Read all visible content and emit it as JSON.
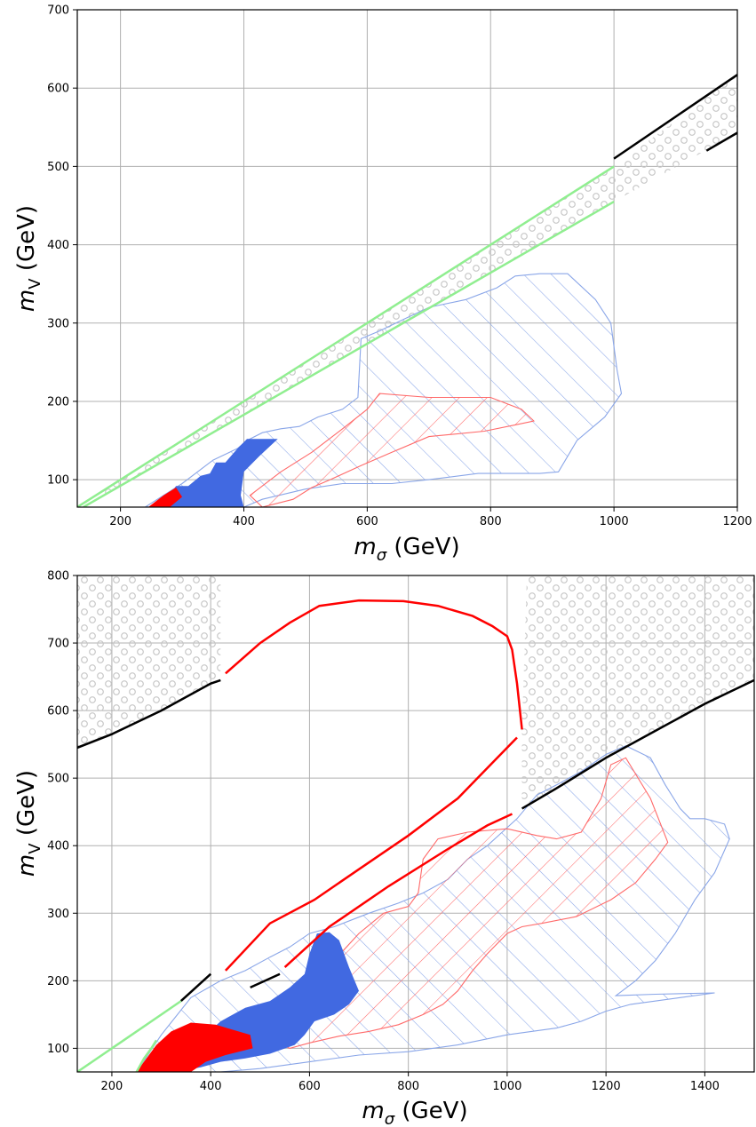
{
  "colors": {
    "solid_blue": "#4169e1",
    "blue_hatch": "#8aa6e8",
    "red": "#ff0000",
    "red_hatch": "#ff6a6a",
    "green": "#90ee90",
    "black": "#000000",
    "dots": "#c8c8c8",
    "grid": "#b0b0b0"
  },
  "chart_data": [
    {
      "type": "area",
      "xlabel_main": "m",
      "xlabel_sub": "σ",
      "xlabel_unit": " (GeV)",
      "ylabel_main": "m",
      "ylabel_sub": "V",
      "ylabel_unit": " (GeV)",
      "xlim": [
        130,
        1200
      ],
      "ylim": [
        65,
        700
      ],
      "xticks": [
        200,
        400,
        600,
        800,
        1000,
        1200
      ],
      "yticks": [
        100,
        200,
        300,
        400,
        500,
        600,
        700
      ],
      "grid": true,
      "green_upper": [
        [
          130,
          65
        ],
        [
          1000,
          500
        ]
      ],
      "green_lower": [
        [
          140,
          65
        ],
        [
          1000,
          455
        ]
      ],
      "black_upper": [
        [
          1000,
          510
        ],
        [
          1200,
          617
        ]
      ],
      "black_lower": [
        [
          1150,
          520
        ],
        [
          1200,
          543
        ]
      ],
      "dots_band": [
        [
          130,
          65
        ],
        [
          1000,
          500
        ],
        [
          1200,
          617
        ],
        [
          1200,
          543
        ],
        [
          1000,
          455
        ],
        [
          140,
          65
        ]
      ],
      "blue_hatch_region": [
        [
          240,
          65
        ],
        [
          300,
          95
        ],
        [
          350,
          125
        ],
        [
          390,
          140
        ],
        [
          405,
          150
        ],
        [
          430,
          160
        ],
        [
          460,
          165
        ],
        [
          490,
          168
        ],
        [
          520,
          180
        ],
        [
          560,
          190
        ],
        [
          585,
          205
        ],
        [
          590,
          280
        ],
        [
          620,
          290
        ],
        [
          660,
          305
        ],
        [
          700,
          320
        ],
        [
          760,
          330
        ],
        [
          810,
          345
        ],
        [
          840,
          360
        ],
        [
          880,
          363
        ],
        [
          925,
          363
        ],
        [
          970,
          330
        ],
        [
          995,
          300
        ],
        [
          1005,
          240
        ],
        [
          1012,
          210
        ],
        [
          985,
          180
        ],
        [
          940,
          150
        ],
        [
          910,
          110
        ],
        [
          880,
          108
        ],
        [
          780,
          108
        ],
        [
          700,
          100
        ],
        [
          640,
          95
        ],
        [
          560,
          95
        ],
        [
          500,
          88
        ],
        [
          430,
          75
        ],
        [
          400,
          65
        ]
      ],
      "red_hatch_region": [
        [
          410,
          80
        ],
        [
          460,
          110
        ],
        [
          510,
          135
        ],
        [
          560,
          165
        ],
        [
          600,
          190
        ],
        [
          620,
          210
        ],
        [
          700,
          205
        ],
        [
          800,
          205
        ],
        [
          850,
          190
        ],
        [
          870,
          175
        ],
        [
          840,
          170
        ],
        [
          790,
          162
        ],
        [
          700,
          155
        ],
        [
          640,
          135
        ],
        [
          590,
          118
        ],
        [
          540,
          100
        ],
        [
          510,
          90
        ],
        [
          480,
          75
        ],
        [
          430,
          65
        ]
      ],
      "solid_blue_region": [
        [
          245,
          65
        ],
        [
          280,
          80
        ],
        [
          290,
          92
        ],
        [
          310,
          92
        ],
        [
          330,
          105
        ],
        [
          345,
          108
        ],
        [
          355,
          122
        ],
        [
          370,
          122
        ],
        [
          390,
          140
        ],
        [
          405,
          152
        ],
        [
          455,
          152
        ],
        [
          425,
          130
        ],
        [
          400,
          110
        ],
        [
          395,
          80
        ],
        [
          400,
          65
        ]
      ],
      "red_solid_region": [
        [
          245,
          65
        ],
        [
          270,
          80
        ],
        [
          290,
          90
        ],
        [
          300,
          78
        ],
        [
          280,
          65
        ]
      ]
    },
    {
      "type": "area",
      "xlabel_main": "m",
      "xlabel_sub": "σ",
      "xlabel_unit": " (GeV)",
      "ylabel_main": "m",
      "ylabel_sub": "V",
      "ylabel_unit": " (GeV)",
      "xlim": [
        130,
        1500
      ],
      "ylim": [
        65,
        800
      ],
      "xticks": [
        200,
        400,
        600,
        800,
        1000,
        1200,
        1400
      ],
      "yticks": [
        100,
        200,
        300,
        400,
        500,
        600,
        700,
        800
      ],
      "grid": true,
      "black_main": [
        [
          130,
          545
        ],
        [
          200,
          565
        ],
        [
          300,
          600
        ],
        [
          400,
          640
        ],
        [
          420,
          645
        ]
      ],
      "black_right": [
        [
          1030,
          455
        ],
        [
          1100,
          485
        ],
        [
          1200,
          530
        ],
        [
          1300,
          570
        ],
        [
          1400,
          610
        ],
        [
          1500,
          645
        ]
      ],
      "black_lower_left": [
        [
          340,
          170
        ],
        [
          400,
          210
        ]
      ],
      "black_mid": [
        [
          480,
          190
        ],
        [
          540,
          210
        ]
      ],
      "red_upper": [
        [
          430,
          655
        ],
        [
          500,
          700
        ],
        [
          560,
          730
        ],
        [
          620,
          755
        ],
        [
          700,
          763
        ],
        [
          790,
          762
        ],
        [
          860,
          755
        ],
        [
          930,
          740
        ],
        [
          970,
          725
        ],
        [
          1000,
          710
        ],
        [
          1010,
          690
        ],
        [
          1020,
          640
        ],
        [
          1030,
          572
        ]
      ],
      "red_lower": [
        [
          430,
          215
        ],
        [
          520,
          285
        ],
        [
          610,
          320
        ],
        [
          700,
          365
        ],
        [
          800,
          415
        ],
        [
          900,
          470
        ],
        [
          960,
          515
        ],
        [
          1000,
          545
        ],
        [
          1020,
          560
        ]
      ],
      "red_lower2": [
        [
          550,
          220
        ],
        [
          640,
          280
        ],
        [
          760,
          340
        ],
        [
          880,
          395
        ],
        [
          960,
          430
        ],
        [
          1010,
          447
        ]
      ],
      "green_line": [
        [
          130,
          65
        ],
        [
          220,
          110
        ],
        [
          300,
          150
        ],
        [
          340,
          170
        ]
      ],
      "green_left": [
        [
          250,
          65
        ],
        [
          265,
          85
        ],
        [
          280,
          100
        ],
        [
          290,
          112
        ]
      ],
      "blue_hatch_region": [
        [
          250,
          65
        ],
        [
          300,
          120
        ],
        [
          360,
          175
        ],
        [
          420,
          200
        ],
        [
          470,
          215
        ],
        [
          520,
          235
        ],
        [
          560,
          250
        ],
        [
          600,
          270
        ],
        [
          650,
          280
        ],
        [
          720,
          300
        ],
        [
          780,
          315
        ],
        [
          830,
          330
        ],
        [
          880,
          350
        ],
        [
          920,
          380
        ],
        [
          960,
          400
        ],
        [
          990,
          420
        ],
        [
          1020,
          440
        ],
        [
          1060,
          475
        ],
        [
          1100,
          490
        ],
        [
          1150,
          510
        ],
        [
          1200,
          535
        ],
        [
          1240,
          548
        ],
        [
          1290,
          530
        ],
        [
          1320,
          490
        ],
        [
          1350,
          455
        ],
        [
          1370,
          440
        ],
        [
          1400,
          440
        ],
        [
          1440,
          432
        ],
        [
          1450,
          410
        ],
        [
          1420,
          360
        ],
        [
          1380,
          320
        ],
        [
          1340,
          270
        ],
        [
          1300,
          230
        ],
        [
          1260,
          200
        ],
        [
          1220,
          178
        ],
        [
          1300,
          180
        ],
        [
          1420,
          182
        ],
        [
          1350,
          175
        ],
        [
          1250,
          165
        ],
        [
          1200,
          155
        ],
        [
          1150,
          140
        ],
        [
          1100,
          130
        ],
        [
          1000,
          120
        ],
        [
          900,
          105
        ],
        [
          800,
          95
        ],
        [
          700,
          90
        ],
        [
          600,
          80
        ],
        [
          500,
          70
        ],
        [
          420,
          65
        ]
      ],
      "red_hatch_region": [
        [
          530,
          110
        ],
        [
          600,
          170
        ],
        [
          650,
          230
        ],
        [
          700,
          270
        ],
        [
          750,
          300
        ],
        [
          800,
          310
        ],
        [
          820,
          330
        ],
        [
          830,
          380
        ],
        [
          860,
          410
        ],
        [
          920,
          420
        ],
        [
          1000,
          425
        ],
        [
          1060,
          415
        ],
        [
          1100,
          410
        ],
        [
          1150,
          420
        ],
        [
          1190,
          470
        ],
        [
          1210,
          520
        ],
        [
          1240,
          530
        ],
        [
          1290,
          470
        ],
        [
          1325,
          405
        ],
        [
          1300,
          380
        ],
        [
          1260,
          345
        ],
        [
          1210,
          320
        ],
        [
          1140,
          295
        ],
        [
          1070,
          285
        ],
        [
          1030,
          280
        ],
        [
          1000,
          270
        ],
        [
          960,
          240
        ],
        [
          930,
          215
        ],
        [
          900,
          185
        ],
        [
          870,
          165
        ],
        [
          830,
          150
        ],
        [
          780,
          135
        ],
        [
          720,
          125
        ],
        [
          660,
          118
        ],
        [
          600,
          108
        ],
        [
          560,
          100
        ]
      ],
      "solid_blue_region": [
        [
          270,
          65
        ],
        [
          300,
          80
        ],
        [
          360,
          100
        ],
        [
          420,
          140
        ],
        [
          470,
          160
        ],
        [
          520,
          170
        ],
        [
          560,
          190
        ],
        [
          590,
          210
        ],
        [
          600,
          240
        ],
        [
          615,
          270
        ],
        [
          640,
          272
        ],
        [
          660,
          260
        ],
        [
          680,
          220
        ],
        [
          700,
          185
        ],
        [
          680,
          165
        ],
        [
          650,
          150
        ],
        [
          610,
          140
        ],
        [
          590,
          120
        ],
        [
          570,
          105
        ],
        [
          520,
          92
        ],
        [
          470,
          85
        ],
        [
          420,
          80
        ],
        [
          380,
          72
        ],
        [
          330,
          65
        ]
      ],
      "red_solid_region": [
        [
          250,
          65
        ],
        [
          270,
          85
        ],
        [
          290,
          105
        ],
        [
          320,
          125
        ],
        [
          360,
          138
        ],
        [
          410,
          135
        ],
        [
          480,
          120
        ],
        [
          485,
          100
        ],
        [
          430,
          90
        ],
        [
          390,
          80
        ],
        [
          360,
          65
        ]
      ],
      "dots_region_upper": [
        [
          130,
          545
        ],
        [
          200,
          565
        ],
        [
          300,
          600
        ],
        [
          420,
          645
        ],
        [
          420,
          800
        ],
        [
          130,
          800
        ]
      ],
      "dots_region_right": [
        [
          1030,
          572
        ],
        [
          1030,
          455
        ],
        [
          1200,
          530
        ],
        [
          1500,
          645
        ],
        [
          1500,
          800
        ],
        [
          1040,
          800
        ]
      ]
    }
  ]
}
